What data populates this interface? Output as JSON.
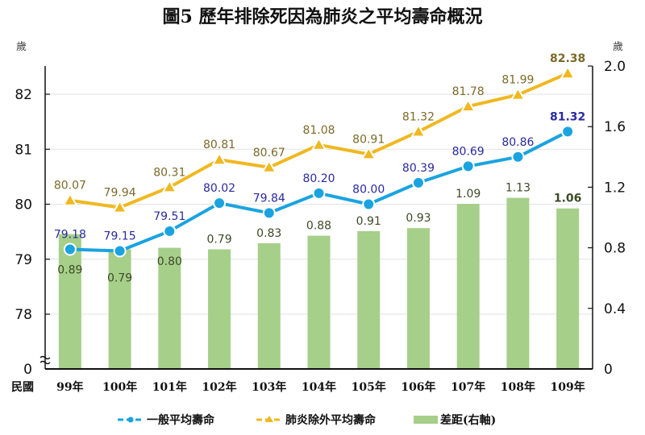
{
  "chart_data": {
    "type": "bar+line",
    "title": "圖5 歷年排除死因為肺炎之平均壽命概況",
    "xlabel_prefix": "民國",
    "left_axis_unit": "歲",
    "right_axis_unit": "歲",
    "categories": [
      "99年",
      "100年",
      "101年",
      "102年",
      "103年",
      "104年",
      "105年",
      "106年",
      "107年",
      "108年",
      "109年"
    ],
    "left_axis": {
      "range": [
        78,
        82.5
      ],
      "ticks": [
        "82",
        "81",
        "80",
        "79",
        "78"
      ],
      "tick_values": [
        82,
        81,
        80,
        79,
        78
      ],
      "break_label": "0",
      "axis_break": true
    },
    "right_axis": {
      "range": [
        0,
        2.0
      ],
      "ticks": [
        "2.0",
        "1.6",
        "1.2",
        "0.8",
        "0.4",
        "0"
      ],
      "tick_values": [
        2.0,
        1.6,
        1.2,
        0.8,
        0.4,
        0
      ]
    },
    "grid": true,
    "series": [
      {
        "name": "一般平均壽命",
        "type": "line",
        "axis": "left",
        "marker": "circle",
        "color": "#1aa3e0",
        "values": [
          79.18,
          79.15,
          79.51,
          80.02,
          79.84,
          80.2,
          80.0,
          80.39,
          80.69,
          80.86,
          81.32
        ],
        "labels": [
          "79.18",
          "79.15",
          "79.51",
          "80.02",
          "79.84",
          "80.20",
          "80.00",
          "80.39",
          "80.69",
          "80.86",
          "81.32"
        ]
      },
      {
        "name": "肺炎除外平均壽命",
        "type": "line",
        "axis": "left",
        "marker": "triangle",
        "color": "#f0b820",
        "values": [
          80.07,
          79.94,
          80.31,
          80.81,
          80.67,
          81.08,
          80.91,
          81.32,
          81.78,
          81.99,
          82.38
        ],
        "labels": [
          "80.07",
          "79.94",
          "80.31",
          "80.81",
          "80.67",
          "81.08",
          "80.91",
          "81.32",
          "81.78",
          "81.99",
          "82.38"
        ]
      },
      {
        "name": "差距(右軸)",
        "type": "bar",
        "axis": "right",
        "color": "#a6cf8a",
        "values": [
          0.89,
          0.79,
          0.8,
          0.79,
          0.83,
          0.88,
          0.91,
          0.93,
          1.09,
          1.13,
          1.06
        ],
        "labels": [
          "0.89",
          "0.79",
          "0.80",
          "0.79",
          "0.83",
          "0.88",
          "0.91",
          "0.93",
          "1.09",
          "1.13",
          "1.06"
        ]
      }
    ],
    "legend": {
      "placement": "bottom",
      "items": [
        "一般平均壽命",
        "肺炎除外平均壽命",
        "差距(右軸)"
      ]
    }
  }
}
